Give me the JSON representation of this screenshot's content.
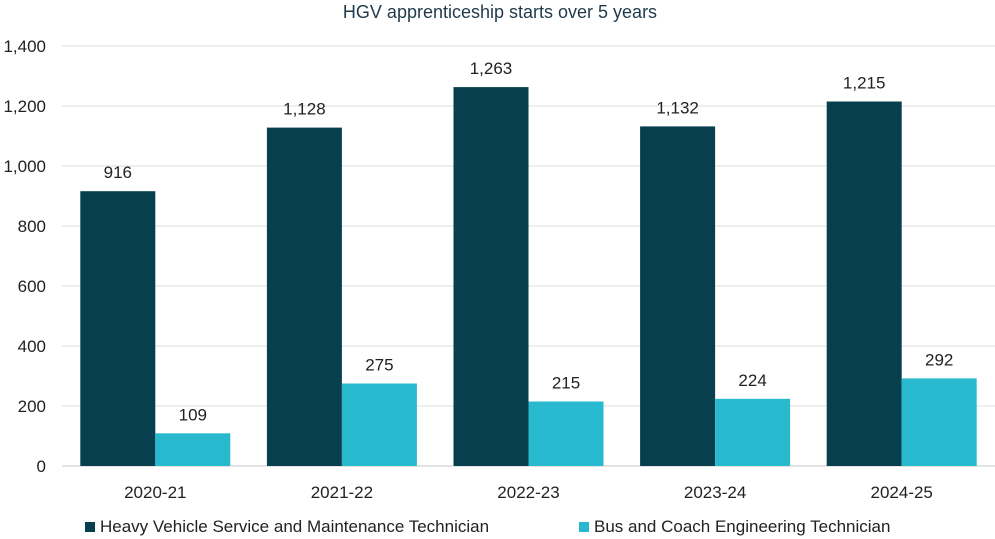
{
  "chart_data": {
    "type": "bar",
    "title": "HGV apprenticeship starts over 5 years",
    "xlabel": "",
    "ylabel": "",
    "categories": [
      "2020-21",
      "2021-22",
      "2022-23",
      "2023-24",
      "2024-25"
    ],
    "series": [
      {
        "name": "Heavy Vehicle Service and Maintenance Technician",
        "values": [
          916,
          1128,
          1263,
          1132,
          1215
        ],
        "labels": [
          "916",
          "1,128",
          "1,263",
          "1,132",
          "1,215"
        ],
        "color": "#073f4e"
      },
      {
        "name": "Bus and Coach Engineering Technician",
        "values": [
          109,
          275,
          215,
          224,
          292
        ],
        "labels": [
          "109",
          "275",
          "215",
          "224",
          "292"
        ],
        "color": "#29b9cf"
      }
    ],
    "ylim": [
      0,
      1400
    ],
    "yticks": [
      0,
      200,
      400,
      600,
      800,
      1000,
      1200,
      1400
    ],
    "ytick_labels": [
      "0",
      "200",
      "400",
      "600",
      "800",
      "1,000",
      "1,200",
      "1,400"
    ],
    "grid": true,
    "legend_position": "bottom"
  }
}
